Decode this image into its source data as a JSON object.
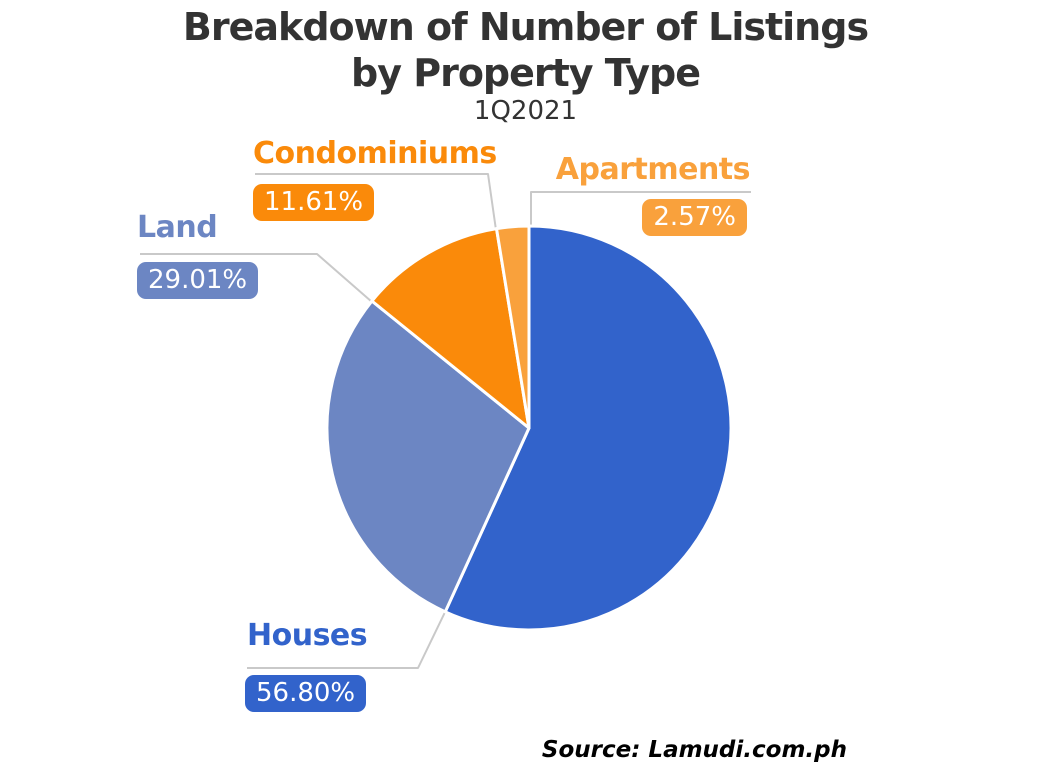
{
  "page": {
    "background": "#FFFFFF"
  },
  "title": {
    "line1": "Breakdown of Number of Listings",
    "line2": "by Property Type",
    "subtitle": "1Q2021",
    "color": "#333333"
  },
  "source": {
    "text": "Source: Lamudi.com.ph",
    "color": "#000000"
  },
  "colors": {
    "leader_line": "#C9C9C9",
    "badge_text": "#FFFFFF"
  },
  "chart_data": {
    "type": "pie",
    "title": "Breakdown of Number of Listings by Property Type",
    "subtitle": "1Q2021",
    "source": "Source: Lamudi.com.ph",
    "start_angle_deg_from_12_oclock": 0,
    "direction": "clockwise",
    "legend": "callout-labels-with-leader-lines",
    "slices": [
      {
        "label": "Houses",
        "value_pct": 56.8,
        "display": "56.80%",
        "color": "#3263CB"
      },
      {
        "label": "Land",
        "value_pct": 29.01,
        "display": "29.01%",
        "color": "#6C86C3"
      },
      {
        "label": "Condominiums",
        "value_pct": 11.61,
        "display": "11.61%",
        "color": "#FA8A0A"
      },
      {
        "label": "Apartments",
        "value_pct": 2.57,
        "display": "2.57%",
        "color": "#F9A13C"
      }
    ]
  }
}
